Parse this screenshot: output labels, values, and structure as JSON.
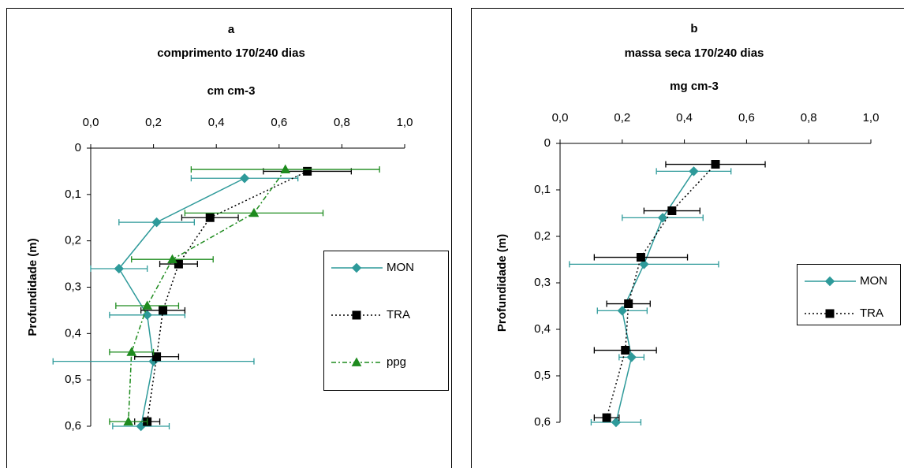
{
  "chart_data": [
    {
      "type": "line",
      "title": "a",
      "subtitle": "comprimento 170/240 dias",
      "x_label": "cm cm-3",
      "y_label": "Profundidade (m)",
      "xlim": [
        0,
        1
      ],
      "xticks": [
        {
          "value": 0,
          "label": "0,0"
        },
        {
          "value": 0.2,
          "label": "0,2"
        },
        {
          "value": 0.4,
          "label": "0,4"
        },
        {
          "value": 0.6,
          "label": "0,6"
        },
        {
          "value": 0.8,
          "label": "0,8"
        },
        {
          "value": 1,
          "label": "1,0"
        }
      ],
      "ylim": [
        0,
        0.6
      ],
      "y_inverted": true,
      "yticks": [
        0,
        {
          "value": 0.1,
          "label": "0,1"
        },
        {
          "value": 0.2,
          "label": "0,2"
        },
        {
          "value": 0.3,
          "label": "0,3"
        },
        {
          "value": 0.4,
          "label": "0,4"
        },
        {
          "value": 0.5,
          "label": "0,5"
        },
        {
          "value": 0.6,
          "label": "0,6"
        }
      ],
      "legend": "right",
      "series": [
        {
          "name": "MON",
          "color": "#2e9a9a",
          "marker": "diamond",
          "dash": "solid",
          "x": [
            0.49,
            0.21,
            0.09,
            0.18,
            0.2,
            0.16
          ],
          "y": [
            0.065,
            0.16,
            0.26,
            0.36,
            0.46,
            0.6
          ],
          "xerr": [
            0.17,
            0.12,
            0.09,
            0.12,
            0.32,
            0.09
          ]
        },
        {
          "name": "TRA",
          "color": "#000000",
          "marker": "square",
          "dash": "dotted",
          "x": [
            0.69,
            0.38,
            0.28,
            0.23,
            0.21,
            0.18
          ],
          "y": [
            0.05,
            0.15,
            0.25,
            0.35,
            0.45,
            0.59
          ],
          "xerr": [
            0.14,
            0.09,
            0.06,
            0.07,
            0.07,
            0.04
          ]
        },
        {
          "name": "ppg",
          "color": "#1e8b1e",
          "marker": "triangle",
          "dash": "dashdot",
          "x": [
            0.62,
            0.52,
            0.26,
            0.18,
            0.13,
            0.12
          ],
          "y": [
            0.046,
            0.14,
            0.24,
            0.34,
            0.44,
            0.59
          ],
          "xerr": [
            0.3,
            0.22,
            0.13,
            0.1,
            0.07,
            0.06
          ]
        }
      ]
    },
    {
      "type": "line",
      "title": "b",
      "subtitle": "massa seca 170/240 dias",
      "x_label": "mg cm-3",
      "y_label": "Profundidade (m)",
      "xlim": [
        0,
        1
      ],
      "xticks": [
        {
          "value": 0,
          "label": "0,0"
        },
        {
          "value": 0.2,
          "label": "0,2"
        },
        {
          "value": 0.4,
          "label": "0,4"
        },
        {
          "value": 0.6,
          "label": "0,6"
        },
        {
          "value": 0.8,
          "label": "0,8"
        },
        {
          "value": 1,
          "label": "1,0"
        }
      ],
      "ylim": [
        0,
        0.6
      ],
      "y_inverted": true,
      "yticks": [
        0,
        {
          "value": 0.1,
          "label": "0,1"
        },
        {
          "value": 0.2,
          "label": "0,2"
        },
        {
          "value": 0.3,
          "label": "0,3"
        },
        {
          "value": 0.4,
          "label": "0,4"
        },
        {
          "value": 0.5,
          "label": "0,5"
        },
        {
          "value": 0.6,
          "label": "0,6"
        }
      ],
      "legend": "right",
      "series": [
        {
          "name": "MON",
          "color": "#2e9a9a",
          "marker": "diamond",
          "dash": "solid",
          "x": [
            0.43,
            0.33,
            0.27,
            0.2,
            0.23,
            0.18
          ],
          "y": [
            0.06,
            0.16,
            0.26,
            0.36,
            0.46,
            0.6
          ],
          "xerr": [
            0.12,
            0.13,
            0.24,
            0.08,
            0.04,
            0.08
          ]
        },
        {
          "name": "TRA",
          "color": "#000000",
          "marker": "square",
          "dash": "dotted",
          "x": [
            0.5,
            0.36,
            0.26,
            0.22,
            0.21,
            0.15
          ],
          "y": [
            0.045,
            0.145,
            0.245,
            0.345,
            0.445,
            0.59
          ],
          "xerr": [
            0.16,
            0.09,
            0.15,
            0.07,
            0.1,
            0.04
          ]
        }
      ]
    }
  ]
}
